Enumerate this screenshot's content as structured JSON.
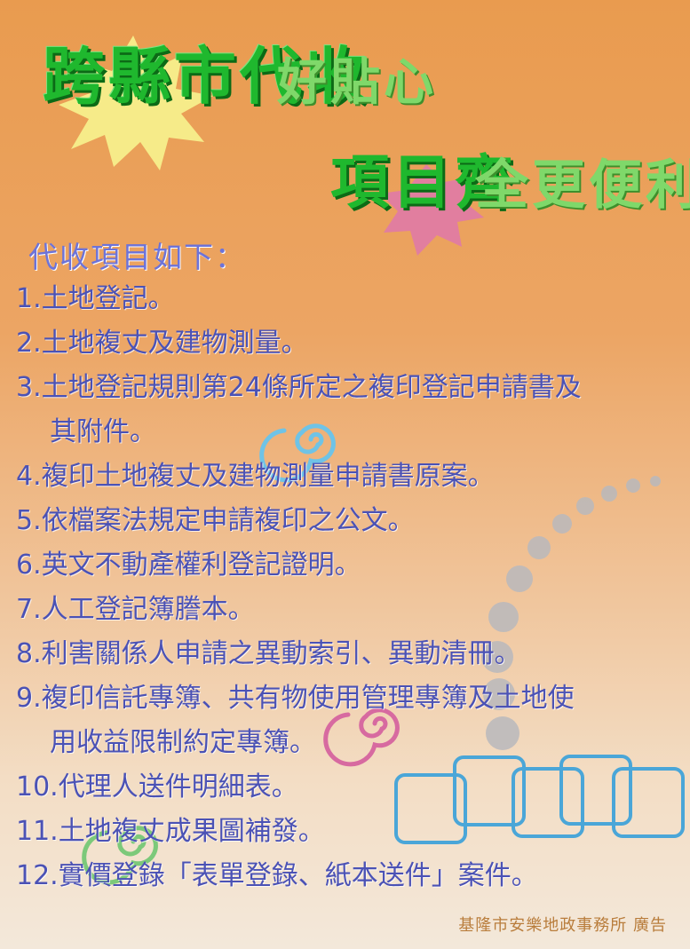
{
  "title": {
    "line1_main": "跨縣市代收",
    "line1_accent": "好貼心",
    "line2_main": "項目齊",
    "line2_accent": "全更便利"
  },
  "list_heading": "代收項目如下：",
  "items": [
    {
      "text": "1.土地登記。"
    },
    {
      "text": "2.土地複丈及建物測量。"
    },
    {
      "text": "3.土地登記規則第24條所定之複印登記申請書及",
      "cont": "其附件。"
    },
    {
      "text": "4.複印土地複丈及建物測量申請書原案。"
    },
    {
      "text": "5.依檔案法規定申請複印之公文。"
    },
    {
      "text": "6.英文不動產權利登記證明。"
    },
    {
      "text": "7.人工登記簿謄本。"
    },
    {
      "text": "8.利害關係人申請之異動索引、異動清冊。"
    },
    {
      "text": "9.複印信託專簿、共有物使用管理專簿及土地使",
      "cont": "用收益限制約定專簿。"
    },
    {
      "text": "10.代理人送件明細表。"
    },
    {
      "text": "11.土地複丈成果圖補發。"
    },
    {
      "text": "12.實價登錄「表單登錄、紙本送件」案件。"
    }
  ],
  "footer": "基隆市安樂地政事務所 廣告",
  "colors": {
    "title_green": "#1fb82e",
    "title_light_green": "#7fd86a",
    "list_text": "#4b52b5",
    "heading_text": "#6d73d8",
    "footer_text": "#b97d3c",
    "burst_yellow": "#f7ef8c",
    "burst_pink": "#e07aa6",
    "square_blue": "#4aa6d8"
  }
}
